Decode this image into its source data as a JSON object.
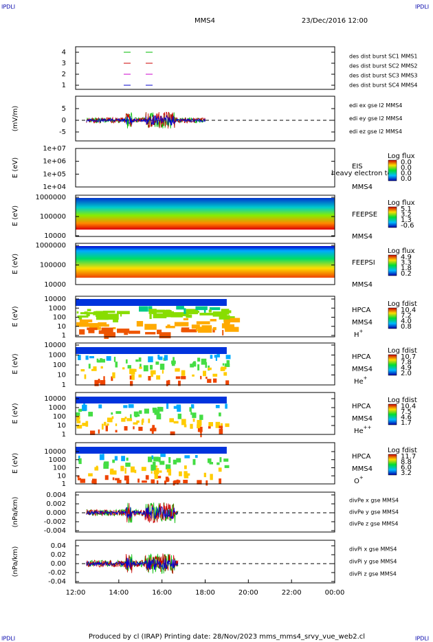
{
  "corners": [
    "IPDLI",
    "IPDLI",
    "IPDLI",
    "IPDLI"
  ],
  "header": {
    "spacecraft": "MMS4",
    "date": "23/Dec/2016 12:00"
  },
  "xticks": [
    "12:00",
    "14:00",
    "16:00",
    "18:00",
    "20:00",
    "22:00",
    "00:00"
  ],
  "panels": [
    {
      "yticks": [
        "4",
        "3",
        "2",
        "1"
      ],
      "legend": [
        {
          "text": "des dist burst SC1 MMS1",
          "color": "#0000cc"
        },
        {
          "text": "des dist burst SC2 MMS2",
          "color": "#cc00cc"
        },
        {
          "text": "des dist burst SC3 MMS3",
          "color": "#cc0000"
        },
        {
          "text": "des dist burst SC4 MMS4",
          "color": "#00bb00"
        }
      ]
    },
    {
      "ylabel": "(mV/m)",
      "yticks": [
        "5",
        "0",
        "-5"
      ],
      "legend": [
        {
          "text": "edi ex gse l2 MMS4",
          "color": "#cc0000"
        },
        {
          "text": "edi ey gse l2 MMS4",
          "color": "#00bb00"
        },
        {
          "text": "edi ez gse l2 MMS4",
          "color": "#0000cc"
        }
      ]
    },
    {
      "ylabel": "E (eV)",
      "yticks": [
        "1e+07",
        "1e+06",
        "1e+05",
        "1e+04"
      ],
      "instrument": "EIS",
      "note": "heavy electron to",
      "sc": "MMS4",
      "colorbar": {
        "title": "Log flux",
        "labels": [
          "0.0",
          "0.0",
          "0.0",
          "0.0"
        ]
      }
    },
    {
      "ylabel": "E (eV)",
      "yticks": [
        "1000000",
        "100000",
        "10000"
      ],
      "instrument": "FEEPSE",
      "sc": "MMS4",
      "colorbar": {
        "title": "Log flux",
        "labels": [
          "5.1",
          "3.2",
          "1.3",
          "-0.6"
        ]
      }
    },
    {
      "ylabel": "E (eV)",
      "yticks": [
        "1000000",
        "100000",
        "10000"
      ],
      "instrument": "FEEPSI",
      "sc": "MMS4",
      "colorbar": {
        "title": "Log flux",
        "labels": [
          "4.9",
          "3.3",
          "1.8",
          "0.2"
        ]
      }
    },
    {
      "ylabel": "E (eV)",
      "yticks": [
        "10000",
        "1000",
        "100",
        "10",
        "1"
      ],
      "instrument": "HPCA",
      "sc": "MMS4",
      "species": "H",
      "charge": "+",
      "colorbar": {
        "title": "Log fdist",
        "labels": [
          "10.4",
          "7.2",
          "4.0",
          "0.8"
        ]
      }
    },
    {
      "ylabel": "E (eV)",
      "yticks": [
        "10000",
        "1000",
        "100",
        "10",
        "1"
      ],
      "instrument": "HPCA",
      "sc": "MMS4",
      "species": "He",
      "charge": "+",
      "colorbar": {
        "title": "Log fdist",
        "labels": [
          "10.7",
          "7.8",
          "4.9",
          "2.0"
        ]
      }
    },
    {
      "ylabel": "E (eV)",
      "yticks": [
        "10000",
        "1000",
        "100",
        "10",
        "1"
      ],
      "instrument": "HPCA",
      "sc": "MMS4",
      "species": "He",
      "charge": "++",
      "colorbar": {
        "title": "Log fdist",
        "labels": [
          "10.4",
          "7.5",
          "4.6",
          "1.7"
        ]
      }
    },
    {
      "ylabel": "E (eV)",
      "yticks": [
        "10000",
        "1000",
        "100",
        "10",
        "1"
      ],
      "instrument": "HPCA",
      "sc": "MMS4",
      "species": "O",
      "charge": "+",
      "colorbar": {
        "title": "Log fdist",
        "labels": [
          "11.7",
          "8.8",
          "6.0",
          "3.2"
        ]
      }
    },
    {
      "ylabel": "(nPa/km)",
      "yticks": [
        "0.004",
        "0.002",
        "0.000",
        "-0.002",
        "-0.004"
      ],
      "legend": [
        {
          "text": "divPe x gse MMS4",
          "color": "#cc0000"
        },
        {
          "text": "divPe y gse MMS4",
          "color": "#00bb00"
        },
        {
          "text": "divPe z gse MMS4",
          "color": "#0000cc"
        }
      ]
    },
    {
      "ylabel": "(nPa/km)",
      "yticks": [
        "0.04",
        "0.02",
        "0.00",
        "-0.02",
        "-0.04"
      ],
      "legend": [
        {
          "text": "divPi x gse MMS4",
          "color": "#cc0000"
        },
        {
          "text": "divPi y gse MMS4",
          "color": "#00bb00"
        },
        {
          "text": "divPi z gse MMS4",
          "color": "#0000cc"
        }
      ]
    }
  ],
  "footer": "Produced by cl (IRAP)   Printing date: 28/Nov/2023   mms_mms4_srvy_vue_web2.cl"
}
